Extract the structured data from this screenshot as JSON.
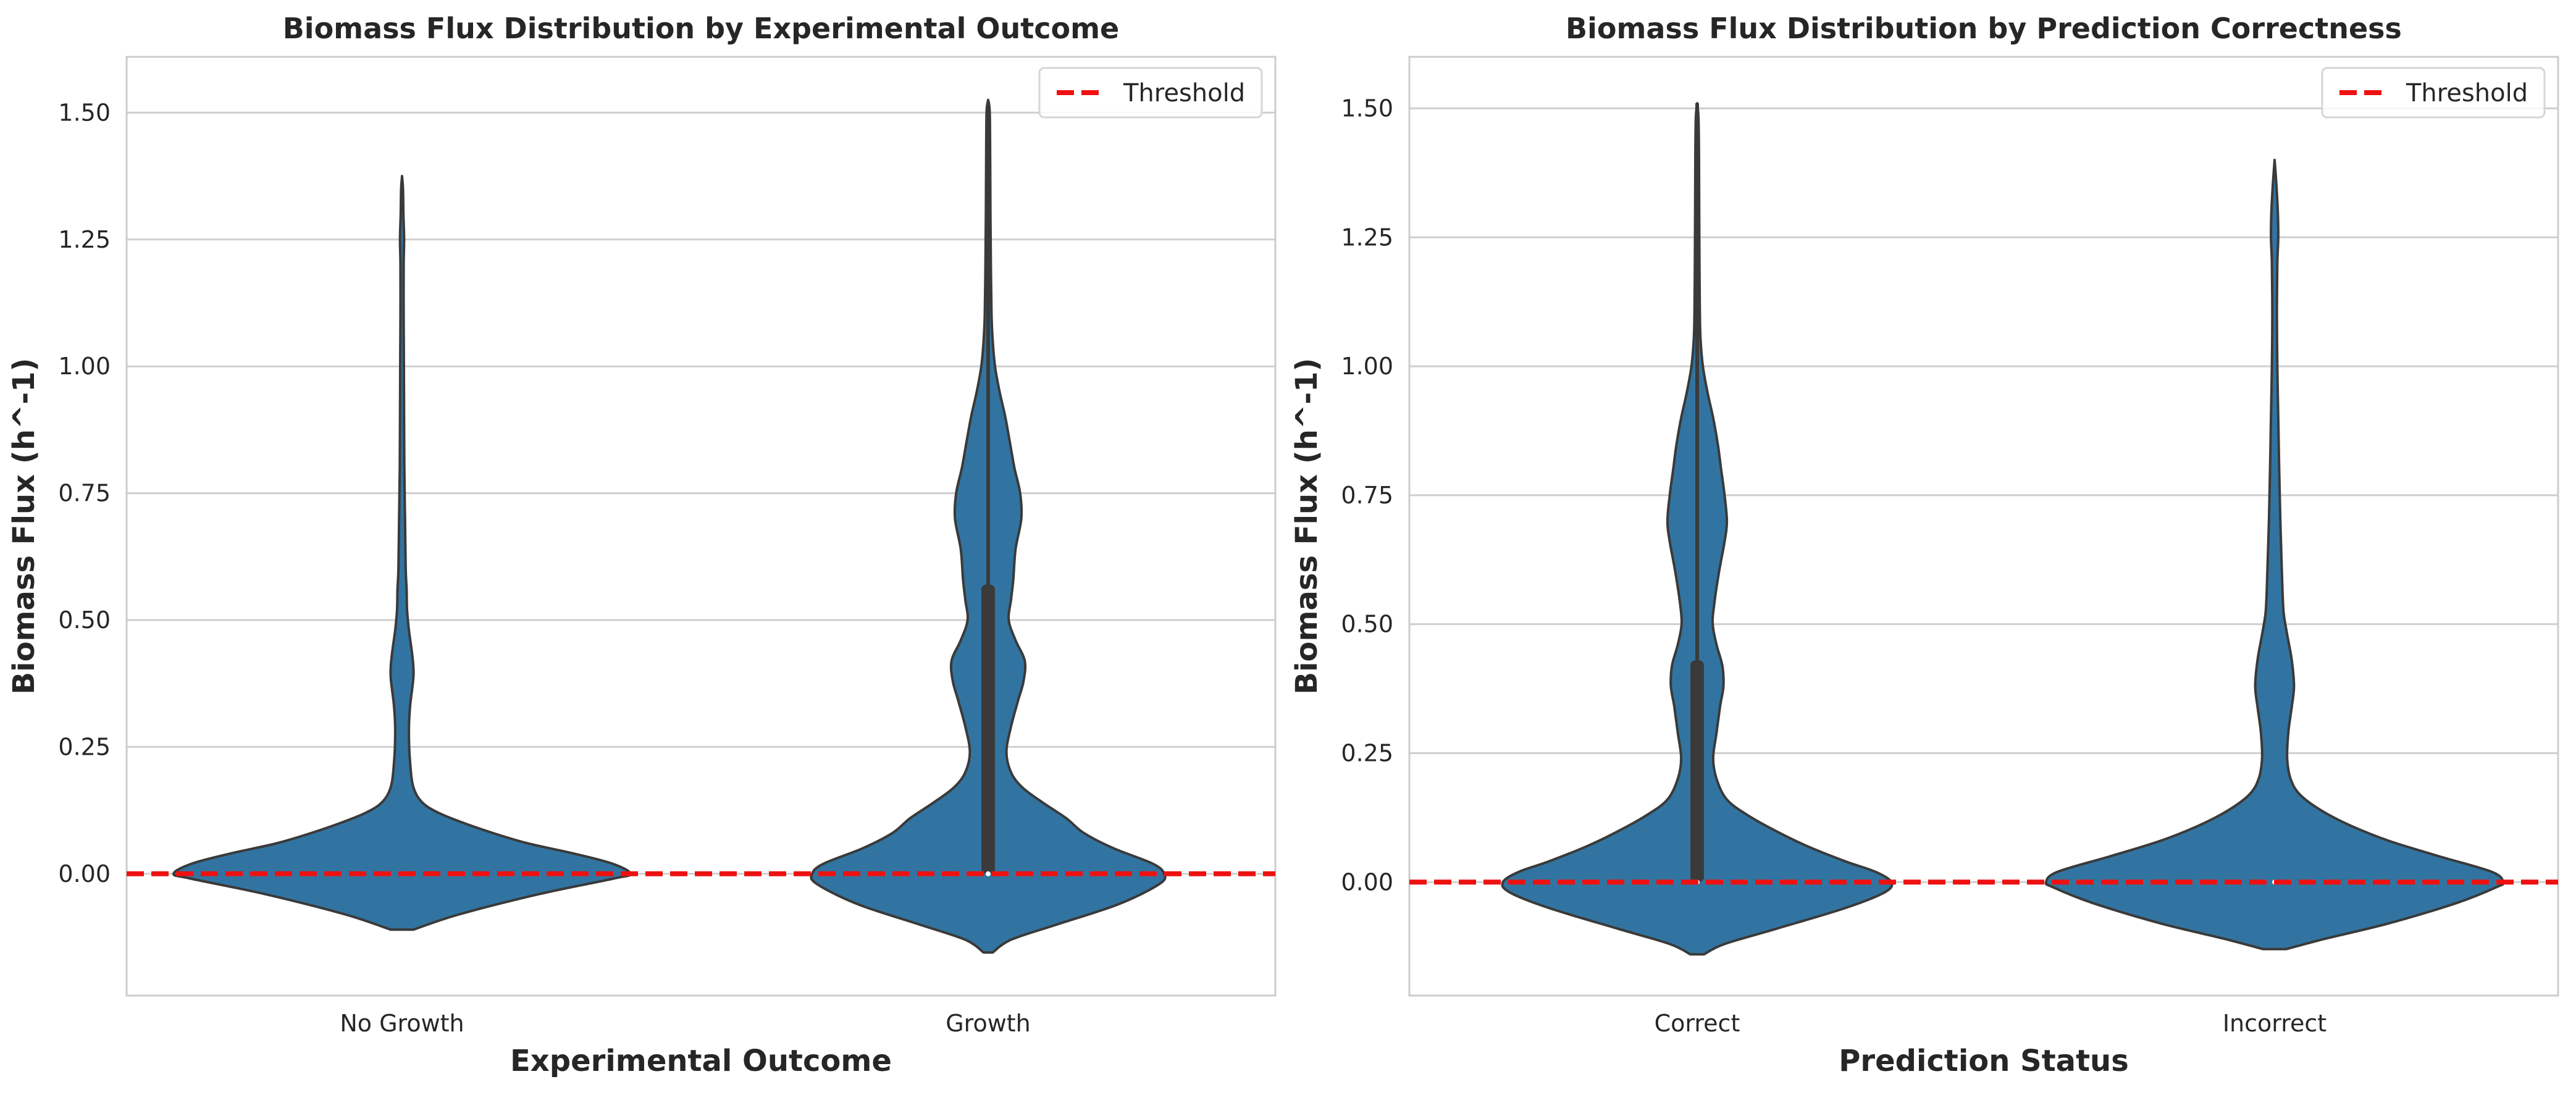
{
  "colors": {
    "violin_fill": "#3274a1",
    "violin_edge": "#3a3a3a",
    "box": "#3a3a3a",
    "threshold": "#ee1111",
    "grid": "#cfcfcf",
    "frame": "#cccccc"
  },
  "chart_data": [
    {
      "type": "violin",
      "title": "Biomass Flux Distribution by Experimental Outcome",
      "xlabel": "Experimental Outcome",
      "ylabel": "Biomass Flux (h^-1)",
      "ylim": [
        -0.24,
        1.61
      ],
      "yticks": [
        0.0,
        0.25,
        0.5,
        0.75,
        1.0,
        1.25,
        1.5
      ],
      "ytick_labels": [
        "0.00",
        "0.25",
        "0.50",
        "0.75",
        "1.00",
        "1.25",
        "1.50"
      ],
      "grid": "horizontal",
      "legend": {
        "position": "top-right",
        "entries": [
          {
            "label": "Threshold",
            "style": "dashed",
            "color": "#ee1111"
          }
        ]
      },
      "threshold": 0.0,
      "categories": [
        "No Growth",
        "Growth"
      ],
      "violins": [
        {
          "category": "No Growth",
          "profile": [
            [
              -0.11,
              0.05
            ],
            [
              -0.08,
              0.25
            ],
            [
              -0.04,
              0.6
            ],
            [
              -0.01,
              0.92
            ],
            [
              0.0,
              1.0
            ],
            [
              0.02,
              0.92
            ],
            [
              0.04,
              0.75
            ],
            [
              0.06,
              0.55
            ],
            [
              0.08,
              0.4
            ],
            [
              0.1,
              0.27
            ],
            [
              0.12,
              0.16
            ],
            [
              0.14,
              0.09
            ],
            [
              0.17,
              0.05
            ],
            [
              0.22,
              0.035
            ],
            [
              0.28,
              0.03
            ],
            [
              0.33,
              0.035
            ],
            [
              0.39,
              0.05
            ],
            [
              0.43,
              0.045
            ],
            [
              0.48,
              0.03
            ],
            [
              0.52,
              0.022
            ],
            [
              0.56,
              0.02
            ],
            [
              0.6,
              0.016
            ],
            [
              0.7,
              0.013
            ],
            [
              0.8,
              0.01
            ],
            [
              0.9,
              0.009
            ],
            [
              1.0,
              0.008
            ],
            [
              1.1,
              0.007
            ],
            [
              1.2,
              0.007
            ],
            [
              1.25,
              0.009
            ],
            [
              1.3,
              0.006
            ],
            [
              1.35,
              0.004
            ],
            [
              1.375,
              0.0
            ]
          ],
          "whisker": [
            0.0,
            0.0
          ],
          "box": [
            0.0,
            0.0
          ],
          "median": 0.0
        },
        {
          "category": "Growth",
          "profile": [
            [
              -0.155,
              0.02
            ],
            [
              -0.13,
              0.1
            ],
            [
              -0.1,
              0.3
            ],
            [
              -0.06,
              0.57
            ],
            [
              -0.02,
              0.75
            ],
            [
              0.0,
              0.77
            ],
            [
              0.02,
              0.72
            ],
            [
              0.05,
              0.55
            ],
            [
              0.08,
              0.42
            ],
            [
              0.11,
              0.34
            ],
            [
              0.14,
              0.24
            ],
            [
              0.17,
              0.15
            ],
            [
              0.2,
              0.1
            ],
            [
              0.24,
              0.08
            ],
            [
              0.29,
              0.1
            ],
            [
              0.34,
              0.13
            ],
            [
              0.38,
              0.155
            ],
            [
              0.42,
              0.16
            ],
            [
              0.46,
              0.12
            ],
            [
              0.5,
              0.09
            ],
            [
              0.54,
              0.1
            ],
            [
              0.58,
              0.11
            ],
            [
              0.64,
              0.12
            ],
            [
              0.7,
              0.145
            ],
            [
              0.75,
              0.14
            ],
            [
              0.8,
              0.115
            ],
            [
              0.85,
              0.095
            ],
            [
              0.9,
              0.075
            ],
            [
              0.95,
              0.05
            ],
            [
              1.0,
              0.03
            ],
            [
              1.05,
              0.02
            ],
            [
              1.1,
              0.015
            ],
            [
              1.2,
              0.012
            ],
            [
              1.3,
              0.01
            ],
            [
              1.4,
              0.009
            ],
            [
              1.5,
              0.007
            ],
            [
              1.525,
              0.0
            ]
          ],
          "whisker": [
            0.0,
            1.52
          ],
          "box": [
            0.0,
            0.57
          ],
          "median": 0.0
        }
      ]
    },
    {
      "type": "violin",
      "title": "Biomass Flux Distribution by Prediction Correctness",
      "xlabel": "Prediction Status",
      "ylabel": "Biomass Flux (h^-1)",
      "ylim": [
        -0.22,
        1.6
      ],
      "yticks": [
        0.0,
        0.25,
        0.5,
        0.75,
        1.0,
        1.25,
        1.5
      ],
      "ytick_labels": [
        "0.00",
        "0.25",
        "0.50",
        "0.75",
        "1.00",
        "1.25",
        "1.50"
      ],
      "grid": "horizontal",
      "legend": {
        "position": "top-right",
        "entries": [
          {
            "label": "Threshold",
            "style": "dashed",
            "color": "#ee1111"
          }
        ]
      },
      "threshold": 0.0,
      "categories": [
        "Correct",
        "Incorrect"
      ],
      "violins": [
        {
          "category": "Correct",
          "profile": [
            [
              -0.14,
              0.03
            ],
            [
              -0.12,
              0.12
            ],
            [
              -0.09,
              0.35
            ],
            [
              -0.05,
              0.65
            ],
            [
              -0.02,
              0.82
            ],
            [
              0.0,
              0.85
            ],
            [
              0.02,
              0.78
            ],
            [
              0.04,
              0.65
            ],
            [
              0.07,
              0.48
            ],
            [
              0.1,
              0.34
            ],
            [
              0.13,
              0.22
            ],
            [
              0.16,
              0.13
            ],
            [
              0.2,
              0.085
            ],
            [
              0.24,
              0.07
            ],
            [
              0.29,
              0.085
            ],
            [
              0.34,
              0.1
            ],
            [
              0.38,
              0.115
            ],
            [
              0.42,
              0.11
            ],
            [
              0.46,
              0.085
            ],
            [
              0.5,
              0.068
            ],
            [
              0.54,
              0.075
            ],
            [
              0.6,
              0.095
            ],
            [
              0.66,
              0.12
            ],
            [
              0.7,
              0.13
            ],
            [
              0.75,
              0.12
            ],
            [
              0.8,
              0.105
            ],
            [
              0.85,
              0.09
            ],
            [
              0.9,
              0.07
            ],
            [
              0.95,
              0.045
            ],
            [
              1.0,
              0.025
            ],
            [
              1.05,
              0.015
            ],
            [
              1.1,
              0.012
            ],
            [
              1.2,
              0.01
            ],
            [
              1.3,
              0.009
            ],
            [
              1.4,
              0.008
            ],
            [
              1.48,
              0.006
            ],
            [
              1.51,
              0.0
            ]
          ],
          "whisker": [
            0.0,
            1.51
          ],
          "box": [
            0.0,
            0.43
          ],
          "median": 0.0
        },
        {
          "category": "Incorrect",
          "profile": [
            [
              -0.13,
              0.05
            ],
            [
              -0.11,
              0.22
            ],
            [
              -0.08,
              0.5
            ],
            [
              -0.04,
              0.8
            ],
            [
              -0.01,
              0.97
            ],
            [
              0.0,
              1.0
            ],
            [
              0.02,
              0.95
            ],
            [
              0.05,
              0.72
            ],
            [
              0.08,
              0.5
            ],
            [
              0.11,
              0.33
            ],
            [
              0.14,
              0.2
            ],
            [
              0.17,
              0.11
            ],
            [
              0.2,
              0.07
            ],
            [
              0.24,
              0.055
            ],
            [
              0.29,
              0.06
            ],
            [
              0.34,
              0.075
            ],
            [
              0.38,
              0.085
            ],
            [
              0.43,
              0.075
            ],
            [
              0.48,
              0.055
            ],
            [
              0.52,
              0.04
            ],
            [
              0.56,
              0.035
            ],
            [
              0.6,
              0.032
            ],
            [
              0.7,
              0.025
            ],
            [
              0.8,
              0.02
            ],
            [
              0.9,
              0.016
            ],
            [
              1.0,
              0.012
            ],
            [
              1.1,
              0.01
            ],
            [
              1.2,
              0.012
            ],
            [
              1.25,
              0.016
            ],
            [
              1.3,
              0.014
            ],
            [
              1.35,
              0.008
            ],
            [
              1.4,
              0.0
            ]
          ],
          "whisker": [
            0.0,
            0.0
          ],
          "box": [
            0.0,
            0.0
          ],
          "median": 0.0
        }
      ]
    }
  ]
}
